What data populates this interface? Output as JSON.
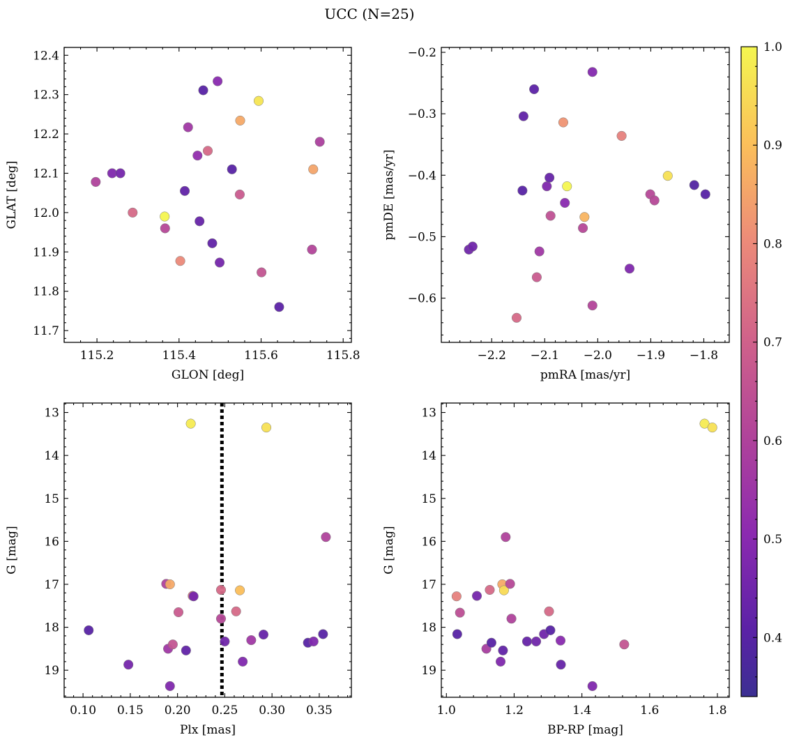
{
  "figure": {
    "title": "UCC (N=25)",
    "colorbar": {
      "ticks": [
        "1.0",
        "0.9",
        "0.8",
        "0.7",
        "0.6",
        "0.5",
        "0.4"
      ],
      "range": [
        0.34,
        1.0
      ],
      "colormap": "plasma"
    }
  },
  "chart_data": [
    {
      "type": "scatter",
      "xlabel": "GLON [deg]",
      "ylabel": "GLAT [deg]",
      "xlim": [
        115.12,
        115.82
      ],
      "ylim": [
        11.67,
        12.42
      ],
      "xticks": [
        115.2,
        115.4,
        115.6,
        115.8
      ],
      "xtick_labels": [
        "115.2",
        "115.4",
        "115.6",
        "115.8"
      ],
      "yticks": [
        11.7,
        11.8,
        11.9,
        12.0,
        12.1,
        12.2,
        12.3,
        12.4
      ],
      "ytick_labels": [
        "11.7",
        "11.8",
        "11.9",
        "12.0",
        "12.1",
        "12.2",
        "12.3",
        "12.4"
      ],
      "points": [
        {
          "x": 115.197,
          "y": 12.078,
          "c": 0.6
        },
        {
          "x": 115.237,
          "y": 12.1,
          "c": 0.48
        },
        {
          "x": 115.257,
          "y": 12.1,
          "c": 0.46
        },
        {
          "x": 115.287,
          "y": 12.0,
          "c": 0.72
        },
        {
          "x": 115.365,
          "y": 11.99,
          "c": 1.0
        },
        {
          "x": 115.366,
          "y": 11.96,
          "c": 0.62
        },
        {
          "x": 115.403,
          "y": 11.877,
          "c": 0.8
        },
        {
          "x": 115.414,
          "y": 12.055,
          "c": 0.42
        },
        {
          "x": 115.422,
          "y": 12.217,
          "c": 0.56
        },
        {
          "x": 115.445,
          "y": 12.145,
          "c": 0.52
        },
        {
          "x": 115.45,
          "y": 11.978,
          "c": 0.43
        },
        {
          "x": 115.459,
          "y": 12.311,
          "c": 0.4
        },
        {
          "x": 115.47,
          "y": 12.157,
          "c": 0.72
        },
        {
          "x": 115.481,
          "y": 11.922,
          "c": 0.42
        },
        {
          "x": 115.494,
          "y": 12.334,
          "c": 0.5
        },
        {
          "x": 115.499,
          "y": 11.873,
          "c": 0.46
        },
        {
          "x": 115.529,
          "y": 12.11,
          "c": 0.4
        },
        {
          "x": 115.548,
          "y": 12.046,
          "c": 0.68
        },
        {
          "x": 115.549,
          "y": 12.234,
          "c": 0.86
        },
        {
          "x": 115.594,
          "y": 12.284,
          "c": 0.97
        },
        {
          "x": 115.601,
          "y": 11.848,
          "c": 0.66
        },
        {
          "x": 115.644,
          "y": 11.76,
          "c": 0.41
        },
        {
          "x": 115.724,
          "y": 11.906,
          "c": 0.61
        },
        {
          "x": 115.727,
          "y": 12.11,
          "c": 0.85
        },
        {
          "x": 115.743,
          "y": 12.18,
          "c": 0.59
        }
      ]
    },
    {
      "type": "scatter",
      "xlabel": "pmRA [mas/yr]",
      "ylabel": "pmDE [mas/yr]",
      "xlim": [
        -2.295,
        -1.752
      ],
      "ylim": [
        -0.672,
        -0.192
      ],
      "xticks": [
        -2.2,
        -2.1,
        -2.0,
        -1.9,
        -1.8
      ],
      "xtick_labels": [
        "−2.2",
        "−2.1",
        "−2.0",
        "−1.9",
        "−1.8"
      ],
      "yticks": [
        -0.6,
        -0.5,
        -0.4,
        -0.3,
        -0.2
      ],
      "ytick_labels": [
        "−0.6",
        "−0.5",
        "−0.4",
        "−0.3",
        "−0.2"
      ],
      "points": [
        {
          "x": -2.243,
          "y": -0.521,
          "c": 0.45
        },
        {
          "x": -2.236,
          "y": -0.516,
          "c": 0.45
        },
        {
          "x": -2.153,
          "y": -0.632,
          "c": 0.72
        },
        {
          "x": -2.142,
          "y": -0.425,
          "c": 0.4
        },
        {
          "x": -2.14,
          "y": -0.304,
          "c": 0.42
        },
        {
          "x": -2.12,
          "y": -0.26,
          "c": 0.41
        },
        {
          "x": -2.115,
          "y": -0.566,
          "c": 0.68
        },
        {
          "x": -2.11,
          "y": -0.524,
          "c": 0.56
        },
        {
          "x": -2.096,
          "y": -0.418,
          "c": 0.48
        },
        {
          "x": -2.091,
          "y": -0.404,
          "c": 0.43
        },
        {
          "x": -2.089,
          "y": -0.466,
          "c": 0.65
        },
        {
          "x": -2.065,
          "y": -0.314,
          "c": 0.82
        },
        {
          "x": -2.062,
          "y": -0.445,
          "c": 0.5
        },
        {
          "x": -2.058,
          "y": -0.418,
          "c": 1.0
        },
        {
          "x": -2.028,
          "y": -0.486,
          "c": 0.62
        },
        {
          "x": -2.025,
          "y": -0.468,
          "c": 0.88
        },
        {
          "x": -2.01,
          "y": -0.232,
          "c": 0.49
        },
        {
          "x": -2.01,
          "y": -0.612,
          "c": 0.61
        },
        {
          "x": -1.955,
          "y": -0.336,
          "c": 0.78
        },
        {
          "x": -1.94,
          "y": -0.552,
          "c": 0.48
        },
        {
          "x": -1.901,
          "y": -0.431,
          "c": 0.62
        },
        {
          "x": -1.893,
          "y": -0.441,
          "c": 0.62
        },
        {
          "x": -1.868,
          "y": -0.401,
          "c": 0.96
        },
        {
          "x": -1.818,
          "y": -0.416,
          "c": 0.39
        },
        {
          "x": -1.797,
          "y": -0.431,
          "c": 0.4
        }
      ]
    },
    {
      "type": "scatter",
      "xlabel": "Plx [mas]",
      "ylabel": "G [mag]",
      "xlim": [
        0.08,
        0.384
      ],
      "ylim": [
        19.63,
        12.78
      ],
      "y_inverted": true,
      "xticks": [
        0.1,
        0.15,
        0.2,
        0.25,
        0.3,
        0.35
      ],
      "xtick_labels": [
        "0.10",
        "0.15",
        "0.20",
        "0.25",
        "0.30",
        "0.35"
      ],
      "yticks": [
        13,
        14,
        15,
        16,
        17,
        18,
        19
      ],
      "ytick_labels": [
        "13",
        "14",
        "15",
        "16",
        "17",
        "18",
        "19"
      ],
      "vline": {
        "x": 0.247,
        "style": "dotted"
      },
      "points": [
        {
          "x": 0.106,
          "y": 18.07,
          "c": 0.4
        },
        {
          "x": 0.148,
          "y": 18.87,
          "c": 0.46
        },
        {
          "x": 0.188,
          "y": 16.99,
          "c": 0.6
        },
        {
          "x": 0.19,
          "y": 18.5,
          "c": 0.56
        },
        {
          "x": 0.192,
          "y": 19.37,
          "c": 0.48
        },
        {
          "x": 0.192,
          "y": 17.0,
          "c": 0.86
        },
        {
          "x": 0.195,
          "y": 18.4,
          "c": 0.66
        },
        {
          "x": 0.201,
          "y": 17.65,
          "c": 0.68
        },
        {
          "x": 0.209,
          "y": 18.54,
          "c": 0.42
        },
        {
          "x": 0.214,
          "y": 13.26,
          "c": 0.98
        },
        {
          "x": 0.216,
          "y": 17.27,
          "c": 0.75
        },
        {
          "x": 0.217,
          "y": 17.28,
          "c": 0.46
        },
        {
          "x": 0.246,
          "y": 17.13,
          "c": 0.72
        },
        {
          "x": 0.246,
          "y": 17.8,
          "c": 0.62
        },
        {
          "x": 0.25,
          "y": 18.33,
          "c": 0.45
        },
        {
          "x": 0.262,
          "y": 17.63,
          "c": 0.72
        },
        {
          "x": 0.266,
          "y": 17.14,
          "c": 0.9
        },
        {
          "x": 0.269,
          "y": 18.8,
          "c": 0.48
        },
        {
          "x": 0.278,
          "y": 18.3,
          "c": 0.56
        },
        {
          "x": 0.291,
          "y": 18.17,
          "c": 0.43
        },
        {
          "x": 0.294,
          "y": 13.35,
          "c": 0.96
        },
        {
          "x": 0.338,
          "y": 18.36,
          "c": 0.4
        },
        {
          "x": 0.344,
          "y": 18.33,
          "c": 0.48
        },
        {
          "x": 0.354,
          "y": 18.16,
          "c": 0.4
        },
        {
          "x": 0.357,
          "y": 15.9,
          "c": 0.6
        }
      ]
    },
    {
      "type": "scatter",
      "xlabel": "BP-RP [mag]",
      "ylabel": "G [mag]",
      "xlim": [
        0.985,
        1.835
      ],
      "ylim": [
        19.63,
        12.78
      ],
      "y_inverted": true,
      "xticks": [
        1.0,
        1.2,
        1.4,
        1.6,
        1.8
      ],
      "xtick_labels": [
        "1.0",
        "1.2",
        "1.4",
        "1.6",
        "1.8"
      ],
      "yticks": [
        13,
        14,
        15,
        16,
        17,
        18,
        19
      ],
      "ytick_labels": [
        "13",
        "14",
        "15",
        "16",
        "17",
        "18",
        "19"
      ],
      "points": [
        {
          "x": 1.03,
          "y": 17.28,
          "c": 0.78
        },
        {
          "x": 1.032,
          "y": 18.16,
          "c": 0.4
        },
        {
          "x": 1.04,
          "y": 17.66,
          "c": 0.64
        },
        {
          "x": 1.09,
          "y": 17.27,
          "c": 0.46
        },
        {
          "x": 1.118,
          "y": 18.5,
          "c": 0.58
        },
        {
          "x": 1.128,
          "y": 17.13,
          "c": 0.72
        },
        {
          "x": 1.133,
          "y": 18.36,
          "c": 0.4
        },
        {
          "x": 1.16,
          "y": 18.8,
          "c": 0.48
        },
        {
          "x": 1.165,
          "y": 17.0,
          "c": 0.86
        },
        {
          "x": 1.167,
          "y": 18.54,
          "c": 0.42
        },
        {
          "x": 1.17,
          "y": 17.14,
          "c": 0.95
        },
        {
          "x": 1.175,
          "y": 15.9,
          "c": 0.6
        },
        {
          "x": 1.188,
          "y": 16.99,
          "c": 0.62
        },
        {
          "x": 1.192,
          "y": 17.8,
          "c": 0.6
        },
        {
          "x": 1.238,
          "y": 18.33,
          "c": 0.43
        },
        {
          "x": 1.265,
          "y": 18.33,
          "c": 0.45
        },
        {
          "x": 1.288,
          "y": 18.16,
          "c": 0.45
        },
        {
          "x": 1.303,
          "y": 17.63,
          "c": 0.72
        },
        {
          "x": 1.307,
          "y": 18.07,
          "c": 0.4
        },
        {
          "x": 1.337,
          "y": 18.31,
          "c": 0.5
        },
        {
          "x": 1.338,
          "y": 18.87,
          "c": 0.43
        },
        {
          "x": 1.431,
          "y": 19.37,
          "c": 0.48
        },
        {
          "x": 1.525,
          "y": 18.4,
          "c": 0.66
        },
        {
          "x": 1.762,
          "y": 13.26,
          "c": 0.98
        },
        {
          "x": 1.785,
          "y": 13.35,
          "c": 0.96
        }
      ]
    }
  ]
}
